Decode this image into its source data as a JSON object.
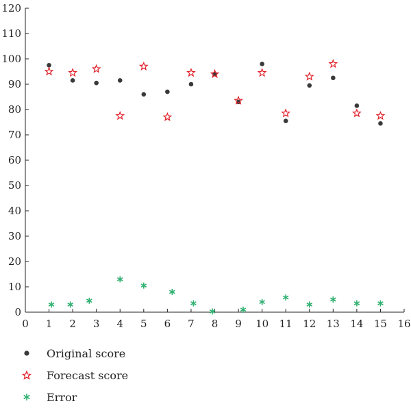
{
  "chart_data": {
    "type": "scatter",
    "xlim": [
      0,
      16
    ],
    "ylim": [
      0,
      120
    ],
    "xticks": [
      0,
      1,
      2,
      3,
      4,
      5,
      6,
      7,
      8,
      9,
      10,
      11,
      12,
      13,
      14,
      15,
      16
    ],
    "yticks": [
      0,
      10,
      20,
      30,
      40,
      50,
      60,
      70,
      80,
      90,
      100,
      110,
      120
    ],
    "grid": false,
    "legend_position": "bottom-left",
    "series": [
      {
        "name": "Original score",
        "marker": "circle",
        "color": "#3a3a3a",
        "points": [
          [
            1.0,
            97.5
          ],
          [
            2.0,
            91.5
          ],
          [
            3.0,
            90.5
          ],
          [
            4.0,
            91.5
          ],
          [
            5.0,
            86.0
          ],
          [
            6.0,
            87.0
          ],
          [
            7.0,
            90.0
          ],
          [
            8.0,
            94.0
          ],
          [
            9.0,
            83.0
          ],
          [
            10.0,
            98.0
          ],
          [
            11.0,
            75.5
          ],
          [
            12.0,
            89.5
          ],
          [
            13.0,
            92.5
          ],
          [
            14.0,
            81.5
          ],
          [
            15.0,
            74.5
          ]
        ]
      },
      {
        "name": "Forecast score",
        "marker": "star",
        "color": "#e0202a",
        "points": [
          [
            1.0,
            95.0
          ],
          [
            2.0,
            94.5
          ],
          [
            3.0,
            96.0
          ],
          [
            4.0,
            77.5
          ],
          [
            5.0,
            97.0
          ],
          [
            6.0,
            77.0
          ],
          [
            7.0,
            94.5
          ],
          [
            8.0,
            94.0
          ],
          [
            9.0,
            83.5
          ],
          [
            10.0,
            94.5
          ],
          [
            11.0,
            78.5
          ],
          [
            12.0,
            93.0
          ],
          [
            13.0,
            98.0
          ],
          [
            14.0,
            78.5
          ],
          [
            15.0,
            77.5
          ]
        ]
      },
      {
        "name": "Error",
        "marker": "asterisk",
        "color": "#2fb070",
        "points": [
          [
            1.1,
            3.0
          ],
          [
            1.9,
            3.0
          ],
          [
            2.7,
            4.5
          ],
          [
            4.0,
            13.0
          ],
          [
            5.0,
            10.5
          ],
          [
            6.2,
            8.0
          ],
          [
            7.1,
            3.5
          ],
          [
            7.9,
            0.3
          ],
          [
            9.2,
            1.0
          ],
          [
            10.0,
            4.0
          ],
          [
            11.0,
            5.8
          ],
          [
            12.0,
            3.0
          ],
          [
            13.0,
            5.0
          ],
          [
            14.0,
            3.5
          ],
          [
            15.0,
            3.5
          ]
        ]
      }
    ]
  }
}
